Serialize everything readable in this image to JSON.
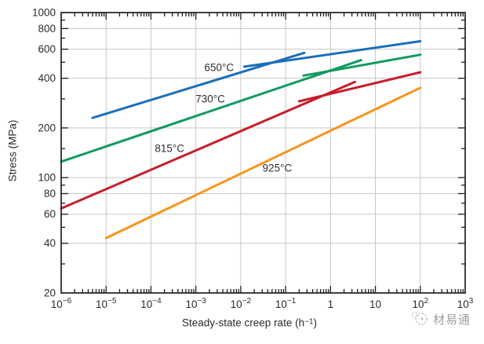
{
  "chart_data": {
    "type": "line",
    "title": "",
    "ylabel": "Stress (MPa)",
    "xlabel_parts": {
      "prefix": "Steady-state creep rate (h",
      "sup": "−1",
      "suffix": ")"
    },
    "x_scale": "log",
    "y_scale": "log",
    "xlim": [
      1e-06,
      1000
    ],
    "ylim": [
      20,
      1000
    ],
    "grid": true,
    "legend_position": "inline-labels",
    "x_ticks": [
      {
        "v": 1e-06,
        "base": "10",
        "exp": "−6"
      },
      {
        "v": 1e-05,
        "base": "10",
        "exp": "−5"
      },
      {
        "v": 0.0001,
        "base": "10",
        "exp": "−4"
      },
      {
        "v": 0.001,
        "base": "10",
        "exp": "−3"
      },
      {
        "v": 0.01,
        "base": "10",
        "exp": "−2"
      },
      {
        "v": 0.1,
        "base": "10",
        "exp": "−1"
      },
      {
        "v": 1,
        "base": "1",
        "exp": ""
      },
      {
        "v": 10,
        "base": "10",
        "exp": ""
      },
      {
        "v": 100,
        "base": "10",
        "exp": "2"
      },
      {
        "v": 1000,
        "base": "10",
        "exp": "3"
      }
    ],
    "y_ticks_major": [
      1000,
      800,
      600,
      400,
      200,
      100,
      80,
      60,
      40,
      20
    ],
    "y_ticks_minor": [
      900,
      700,
      500,
      300,
      150,
      90,
      70,
      50,
      30
    ],
    "series": [
      {
        "name": "650°C",
        "color": "#1c6fb7",
        "label_anchor": [
          0.0033,
          465
        ],
        "lines": [
          [
            [
              5e-06,
              230
            ],
            [
              0.26,
              570
            ]
          ],
          [
            [
              0.012,
              470
            ],
            [
              100,
              670
            ]
          ]
        ]
      },
      {
        "name": "730°C",
        "color": "#129a60",
        "label_anchor": [
          0.0021,
          300
        ],
        "lines": [
          [
            [
              1e-06,
              125
            ],
            [
              4.8,
              515
            ]
          ],
          [
            [
              0.25,
              415
            ],
            [
              100,
              555
            ]
          ]
        ]
      },
      {
        "name": "815°C",
        "color": "#c51f2b",
        "label_anchor": [
          0.00026,
          150
        ],
        "lines": [
          [
            [
              1e-06,
              65
            ],
            [
              3.5,
              380
            ]
          ],
          [
            [
              0.2,
              290
            ],
            [
              100,
              435
            ]
          ]
        ]
      },
      {
        "name": "925°C",
        "color": "#f7941d",
        "label_anchor": [
          0.065,
          114
        ],
        "lines": [
          [
            [
              1e-05,
              43
            ],
            [
              100,
              350
            ]
          ]
        ]
      }
    ],
    "colors": {
      "axis": "#1f1f1f",
      "grid": "#c7c7c7",
      "tick_label": "#2b2b2b"
    }
  },
  "watermark": {
    "text": "材易通"
  }
}
